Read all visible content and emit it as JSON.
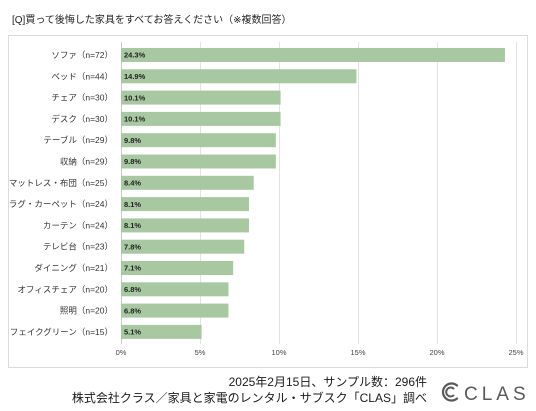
{
  "chart_data": {
    "type": "bar",
    "orientation": "horizontal",
    "title": "[Q]買って後悔した家具をすべてお答えください（※複数回答）",
    "categories": [
      "ソファ（n=72）",
      "ベッド（n=44）",
      "チェア（n=30）",
      "デスク（n=30）",
      "テーブル（n=29）",
      "収納（n=29）",
      "マットレス・布団（n=25）",
      "ラグ・カーペット（n=24）",
      "カーテン（n=24）",
      "テレビ台（n=23）",
      "ダイニング（n=21）",
      "オフィスチェア（n=20）",
      "照明（n=20）",
      "フェイクグリーン（n=15）"
    ],
    "values": [
      24.3,
      14.9,
      10.1,
      10.1,
      9.8,
      9.8,
      8.4,
      8.1,
      8.1,
      7.8,
      7.1,
      6.8,
      6.8,
      5.1
    ],
    "value_unit": "%",
    "x_ticks": [
      0,
      5,
      10,
      15,
      20,
      25
    ],
    "x_tick_labels": [
      "0%",
      "5%",
      "10%",
      "15%",
      "20%",
      "25%"
    ],
    "xlim": [
      0,
      25
    ],
    "grid": true,
    "bar_color": "#a8c8a2"
  },
  "footer": {
    "date_sample": "2025年2月15日、サンプル数：296件",
    "source": "株式会社クラス／家具と家電のレンタル・サブスク「CLAS」調べ"
  },
  "logo": {
    "text": "CLAS",
    "icon": "clas-logo-icon",
    "color": "#5a5a5a"
  }
}
